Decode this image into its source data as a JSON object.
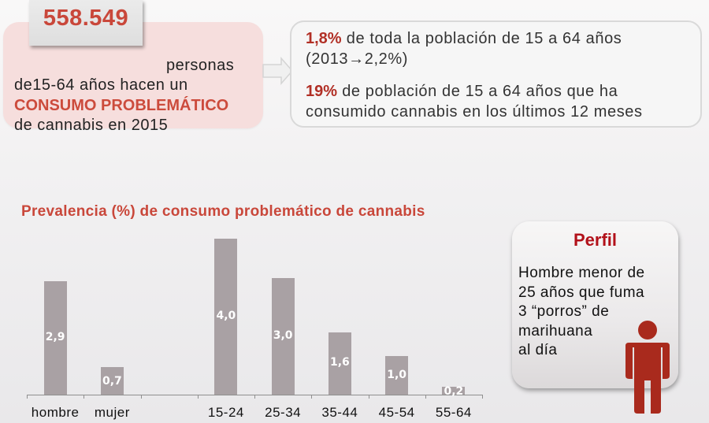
{
  "summary": {
    "big_number": "558.549",
    "personas": "personas",
    "line2": "de15-64 años hacen un",
    "line3_highlight": "CONSUMO PROBLEMÁTICO",
    "line4": "de cannabis en 2015"
  },
  "detail": {
    "item1_highlight": "1,8%",
    "item1_text": " de toda la población de 15 a 64 años",
    "item1_sub": "(2013→2,2%)",
    "item2_highlight": "19%",
    "item2_text": " de población de 15 a 64 años que ha",
    "item2_sub": "consumido cannabis en los últimos 12 meses"
  },
  "colors": {
    "accent_red": "#c9473a",
    "dark_red": "#b12f25",
    "bar_gray": "#a9a1a4",
    "person_red": "#a92a1d"
  },
  "chart_data": {
    "type": "bar",
    "title": "Prevalencia (%) de consumo problemático de cannabis",
    "xlabel": "",
    "ylabel": "",
    "categories": [
      "hombre",
      "mujer",
      "",
      "15-24",
      "25-34",
      "35-44",
      "45-54",
      "55-64"
    ],
    "values": [
      2.9,
      0.7,
      null,
      4.0,
      3.0,
      1.6,
      1.0,
      0.2
    ],
    "data_labels": [
      "2,9",
      "0,7",
      "",
      "4,0",
      "3,0",
      "1,6",
      "1,0",
      "0,2"
    ],
    "ylim": [
      0,
      4.0
    ],
    "grid": false,
    "legend": null
  },
  "perfil": {
    "title": "Perfil",
    "text": "Hombre menor de\n25 años que fuma\n3 “porros” de\nmarihuana\nal día",
    "icon": "person-icon"
  }
}
